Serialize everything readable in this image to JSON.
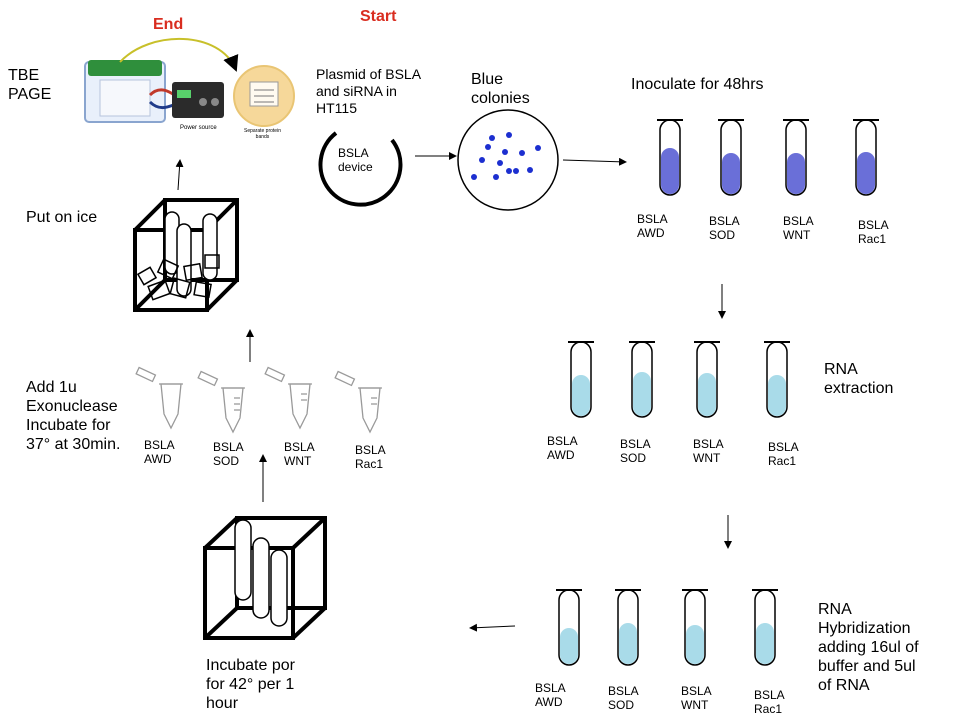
{
  "markers": {
    "start": "Start",
    "end": "End"
  },
  "steps": {
    "tbe": "TBE\nPAGE",
    "plasmid": "Plasmid of BSLA\nand siRNA in\nHT115",
    "device": "BSLA\ndevice",
    "colonies": "Blue\ncolonies",
    "inoculate": "Inoculate for 48hrs",
    "rna_extraction": "RNA\nextraction",
    "hybridization": "RNA\nHybridization\nadding 16ul of\nbuffer and 5ul\nof RNA",
    "incubate": "Incubate por\nfor 42° per 1\nhour",
    "exonuclease": "Add 1u\nExonuclease\nIncubate for\n37° at 30min.",
    "ice": "Put on ice"
  },
  "gel_image": {
    "power_source": "Power source",
    "bands": "Separate protein\nbands"
  },
  "tube_labels": {
    "inoculate": [
      "BSLA\nAWD",
      "BSLA\nSOD",
      "BSLA\nWNT",
      "BSLA\nRac1"
    ],
    "extraction": [
      "BSLA\nAWD",
      "BSLA\nSOD",
      "BSLA\nWNT",
      "BSLA\nRac1"
    ],
    "hybridization": [
      "BSLA\nAWD",
      "BSLA\nSOD",
      "BSLA\nWNT",
      "BSLA\nRac1"
    ],
    "exonuclease": [
      "BSLA\nAWD",
      "BSLA\nSOD",
      "BSLA\nWNT",
      "BSLA\nRac1"
    ]
  },
  "colors": {
    "purple_culture": "#6a6fd8",
    "rna_liquid": "#a9dbe9",
    "colony_dot": "#1c2fd0",
    "start_end": "#d92d20"
  }
}
